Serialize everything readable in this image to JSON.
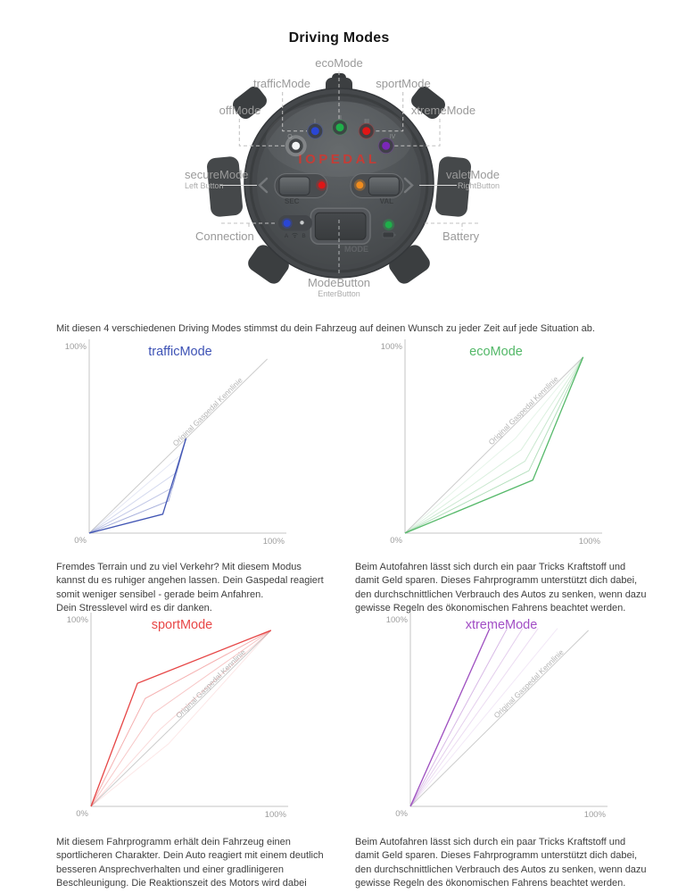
{
  "page": {
    "title": "Driving Modes",
    "intro": "Mit diesen 4 verschiedenen Driving Modes stimmst du dein Fahrzeug auf deinen Wunsch zu jeder Zeit auf jede Situation ab."
  },
  "device": {
    "brand": "IOPEDAL",
    "brand_color": "#cc3a33",
    "led_labels": [
      "O",
      "I",
      "II",
      "III",
      "IV"
    ],
    "led_colors": {
      "offMode": "#f2f3f4",
      "trafficMode": "#2a46d4",
      "ecoMode": "#1faf4a",
      "sportMode": "#e01616",
      "xtremeMode": "#7a27b8",
      "left_status": "#e01616",
      "right_status": "#f08c1e",
      "connection": "#2a46d4",
      "battery": "#1faf4a"
    },
    "button_labels": {
      "left": "SEC",
      "right": "VAL",
      "mode": "MODE"
    },
    "marking_a": "A",
    "marking_b": "B",
    "callouts": {
      "ecoMode": "ecoMode",
      "trafficMode": "trafficMode",
      "sportMode": "sportMode",
      "offMode": "offMode",
      "xtremeMode": "xtremeMode",
      "secureMode": {
        "label": "secureMode",
        "sub": "Left Button"
      },
      "valetMode": {
        "label": "valetMode",
        "sub": "RightButton"
      },
      "connection": "Connection",
      "battery": "Battery",
      "modeButton": {
        "label": "ModeButton",
        "sub": "EnterButton"
      }
    }
  },
  "chart_data": [
    {
      "type": "line",
      "title": "trafficMode",
      "title_color": "#3d52b5",
      "line_color": "#4155b4",
      "xlabel_min": "0%",
      "xlabel_max": "100%",
      "ylabel_max": "100%",
      "xlim": [
        0,
        100
      ],
      "ylim": [
        0,
        100
      ],
      "grid": false,
      "reference_line": {
        "label": "Original Gaspedal Kennlinie",
        "points": [
          [
            0,
            0
          ],
          [
            92,
            92
          ]
        ]
      },
      "series": [
        {
          "name": "main",
          "opacity": 1,
          "points": [
            [
              0,
              0
            ],
            [
              38,
              10
            ],
            [
              50,
              50
            ]
          ]
        },
        {
          "name": "ghost-1",
          "opacity": 0.45,
          "points": [
            [
              0,
              0
            ],
            [
              41,
              17
            ],
            [
              50,
              50
            ]
          ]
        },
        {
          "name": "ghost-2",
          "opacity": 0.32,
          "points": [
            [
              0,
              0
            ],
            [
              43,
              24
            ],
            [
              50,
              50
            ]
          ]
        },
        {
          "name": "ghost-3",
          "opacity": 0.22,
          "points": [
            [
              0,
              0
            ],
            [
              45,
              32
            ],
            [
              50,
              50
            ]
          ]
        },
        {
          "name": "ghost-4",
          "opacity": 0.14,
          "points": [
            [
              0,
              0
            ],
            [
              47,
              41
            ],
            [
              50,
              50
            ]
          ]
        }
      ]
    },
    {
      "type": "line",
      "title": "ecoMode",
      "title_color": "#53b868",
      "line_color": "#56b96a",
      "xlabel_min": "0%",
      "xlabel_max": "100%",
      "ylabel_max": "100%",
      "xlim": [
        0,
        100
      ],
      "ylim": [
        0,
        100
      ],
      "grid": false,
      "reference_line": {
        "label": "Original Gaspedal Kennlinie",
        "points": [
          [
            0,
            0
          ],
          [
            92,
            93
          ]
        ]
      },
      "series": [
        {
          "name": "main",
          "opacity": 1,
          "points": [
            [
              0,
              0
            ],
            [
              66,
              28
            ],
            [
              92,
              93
            ]
          ]
        },
        {
          "name": "ghost-1",
          "opacity": 0.45,
          "points": [
            [
              0,
              0
            ],
            [
              64,
              33
            ],
            [
              92,
              93
            ]
          ]
        },
        {
          "name": "ghost-2",
          "opacity": 0.32,
          "points": [
            [
              0,
              0
            ],
            [
              62,
              38
            ],
            [
              92,
              93
            ]
          ]
        },
        {
          "name": "ghost-3",
          "opacity": 0.22,
          "points": [
            [
              0,
              0
            ],
            [
              60,
              44
            ],
            [
              92,
              93
            ]
          ]
        },
        {
          "name": "ghost-4",
          "opacity": 0.14,
          "points": [
            [
              0,
              0
            ],
            [
              57,
              50
            ],
            [
              92,
              93
            ]
          ]
        }
      ]
    },
    {
      "type": "line",
      "title": "sportMode",
      "title_color": "#e84848",
      "line_color": "#e64545",
      "xlabel_min": "0%",
      "xlabel_max": "100%",
      "ylabel_max": "100%",
      "xlim": [
        0,
        100
      ],
      "ylim": [
        0,
        100
      ],
      "grid": false,
      "reference_line": {
        "label": "Original Gaspedal Kennlinie",
        "points": [
          [
            0,
            0
          ],
          [
            93,
            93
          ]
        ]
      },
      "series": [
        {
          "name": "main",
          "opacity": 1,
          "points": [
            [
              0,
              0
            ],
            [
              24,
              65
            ],
            [
              93,
              93
            ]
          ]
        },
        {
          "name": "ghost-1",
          "opacity": 0.42,
          "points": [
            [
              0,
              0
            ],
            [
              28,
              57
            ],
            [
              93,
              93
            ]
          ]
        },
        {
          "name": "ghost-2",
          "opacity": 0.3,
          "points": [
            [
              0,
              0
            ],
            [
              32,
              49
            ],
            [
              93,
              93
            ]
          ]
        },
        {
          "name": "ghost-3",
          "opacity": 0.2,
          "points": [
            [
              0,
              0
            ],
            [
              36,
              41
            ],
            [
              93,
              93
            ]
          ]
        },
        {
          "name": "ghost-4",
          "opacity": 0.13,
          "points": [
            [
              0,
              0
            ],
            [
              40,
              33
            ],
            [
              93,
              93
            ]
          ]
        }
      ]
    },
    {
      "type": "line",
      "title": "xtremeMode",
      "title_color": "#a24ec5",
      "line_color": "#9e4fc0",
      "xlabel_min": "0%",
      "xlabel_max": "100%",
      "ylabel_max": "100%",
      "xlim": [
        0,
        100
      ],
      "ylim": [
        0,
        100
      ],
      "grid": false,
      "reference_line": {
        "label": "Original Gaspedal Kennlinie",
        "points": [
          [
            0,
            0
          ],
          [
            92,
            93
          ]
        ]
      },
      "series": [
        {
          "name": "main",
          "opacity": 1,
          "points": [
            [
              0,
              0
            ],
            [
              41,
              94
            ]
          ]
        },
        {
          "name": "ghost-1",
          "opacity": 0.4,
          "points": [
            [
              0,
              0
            ],
            [
              50,
              94
            ]
          ]
        },
        {
          "name": "ghost-2",
          "opacity": 0.28,
          "points": [
            [
              0,
              0
            ],
            [
              58,
              94
            ]
          ]
        },
        {
          "name": "ghost-3",
          "opacity": 0.2,
          "points": [
            [
              0,
              0
            ],
            [
              66,
              94
            ]
          ]
        },
        {
          "name": "ghost-4",
          "opacity": 0.13,
          "points": [
            [
              0,
              0
            ],
            [
              76,
              94
            ]
          ]
        }
      ]
    }
  ],
  "descriptions": {
    "trafficMode": "Fremdes Terrain und zu viel Verkehr? Mit diesem Modus\nkannst du es ruhiger angehen lassen. Dein Gaspedal reagiert\nsomit weniger sensibel - gerade beim Anfahren.\nDein Stresslevel wird es dir danken.",
    "ecoMode": "Beim Autofahren lässt sich durch ein paar Tricks Kraftstoff und\ndamit Geld sparen. Dieses Fahrprogramm unterstützt dich dabei,\nden durchschnittlichen Verbrauch des Autos zu senken,  wenn dazu\ngewisse Regeln des ökonomischen Fahrens beachtet werden.",
    "sportMode": "Mit diesem Fahrprogramm erhält dein Fahrzeug einen\nsportlicheren Charakter. Dein Auto reagiert mit einem deutlich\nbesseren Ansprechverhalten und einer gradlinigeren\nBeschleunigung. Die Reaktionszeit des Motors wird dabei\nerheblich verbessert.",
    "xtremeMode": "Beim Autofahren lässt sich durch ein paar Tricks Kraftstoff und\ndamit Geld sparen. Dieses Fahrprogramm unterstützt dich dabei,\nden durchschnittlichen Verbrauch des Autos zu senken,  wenn dazu\ngewisse Regeln des ökonomischen Fahrens beachtet werden."
  }
}
